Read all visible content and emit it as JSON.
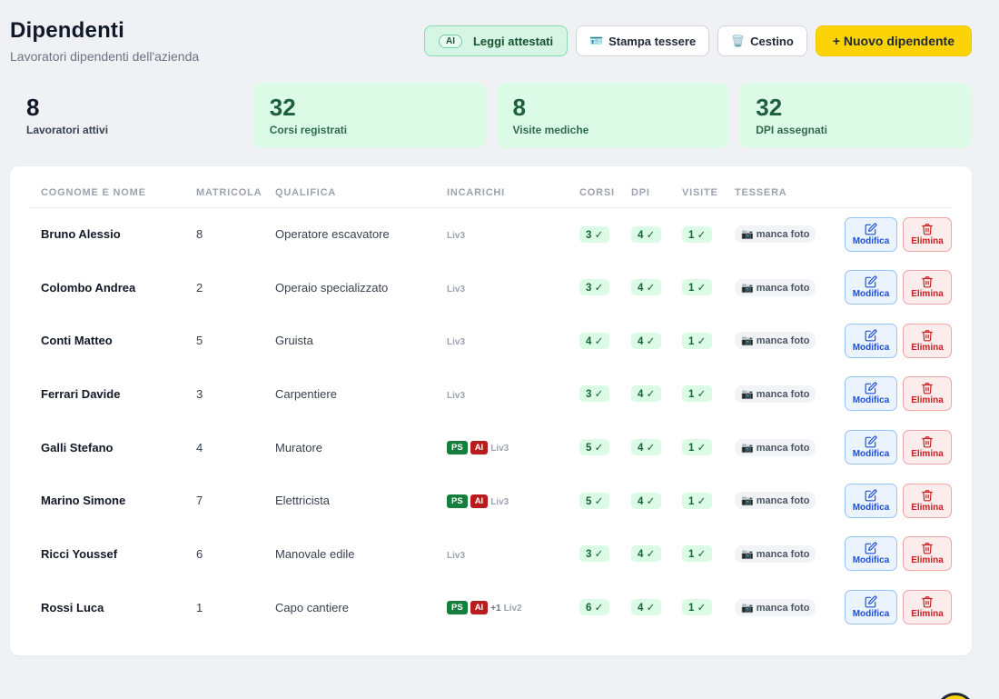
{
  "header": {
    "title": "Dipendenti",
    "subtitle": "Lavoratori dipendenti dell'azienda"
  },
  "actions": {
    "ai_chip": "AI",
    "read_label": "Leggi attestati",
    "print_label": "Stampa tessere",
    "trash_label": "Cestino",
    "new_label": "+ Nuovo dipendente"
  },
  "stats": [
    {
      "value": "8",
      "label": "Lavoratori attivi"
    },
    {
      "value": "32",
      "label": "Corsi registrati"
    },
    {
      "value": "8",
      "label": "Visite mediche"
    },
    {
      "value": "32",
      "label": "DPI assegnati"
    }
  ],
  "table": {
    "headers": [
      "COGNOME E NOME",
      "MATRICOLA",
      "QUALIFICA",
      "INCARICHI",
      "CORSI",
      "DPI",
      "VISITE",
      "TESSERA"
    ],
    "edit_label": "Modifica",
    "delete_label": "Elimina",
    "rows": [
      {
        "name": "Bruno Alessio",
        "matricola": "8",
        "qualifica": "Operatore escavatore",
        "tags": [],
        "extra": "",
        "level": "Liv3",
        "corsi": "3 ✓",
        "dpi": "4 ✓",
        "visite": "1 ✓",
        "tessera": "📷 manca foto"
      },
      {
        "name": "Colombo Andrea",
        "matricola": "2",
        "qualifica": "Operaio specializzato",
        "tags": [],
        "extra": "",
        "level": "Liv3",
        "corsi": "3 ✓",
        "dpi": "4 ✓",
        "visite": "1 ✓",
        "tessera": "📷 manca foto"
      },
      {
        "name": "Conti Matteo",
        "matricola": "5",
        "qualifica": "Gruista",
        "tags": [],
        "extra": "",
        "level": "Liv3",
        "corsi": "4 ✓",
        "dpi": "4 ✓",
        "visite": "1 ✓",
        "tessera": "📷 manca foto"
      },
      {
        "name": "Ferrari Davide",
        "matricola": "3",
        "qualifica": "Carpentiere",
        "tags": [],
        "extra": "",
        "level": "Liv3",
        "corsi": "3 ✓",
        "dpi": "4 ✓",
        "visite": "1 ✓",
        "tessera": "📷 manca foto"
      },
      {
        "name": "Galli Stefano",
        "matricola": "4",
        "qualifica": "Muratore",
        "tags": [
          "PS",
          "AI"
        ],
        "extra": "",
        "level": "Liv3",
        "corsi": "5 ✓",
        "dpi": "4 ✓",
        "visite": "1 ✓",
        "tessera": "📷 manca foto"
      },
      {
        "name": "Marino Simone",
        "matricola": "7",
        "qualifica": "Elettricista",
        "tags": [
          "PS",
          "AI"
        ],
        "extra": "",
        "level": "Liv3",
        "corsi": "5 ✓",
        "dpi": "4 ✓",
        "visite": "1 ✓",
        "tessera": "📷 manca foto"
      },
      {
        "name": "Ricci Youssef",
        "matricola": "6",
        "qualifica": "Manovale edile",
        "tags": [],
        "extra": "",
        "level": "Liv3",
        "corsi": "3 ✓",
        "dpi": "4 ✓",
        "visite": "1 ✓",
        "tessera": "📷 manca foto"
      },
      {
        "name": "Rossi Luca",
        "matricola": "1",
        "qualifica": "Capo cantiere",
        "tags": [
          "PS",
          "AI"
        ],
        "extra": "+1",
        "level": "Liv2",
        "corsi": "6 ✓",
        "dpi": "4 ✓",
        "visite": "1 ✓",
        "tessera": "📷 manca foto"
      }
    ]
  },
  "colors": {
    "accent": "#fcd307",
    "success_bg": "#dcfbe6",
    "danger": "#c81e1e",
    "info": "#1d4ed8"
  }
}
